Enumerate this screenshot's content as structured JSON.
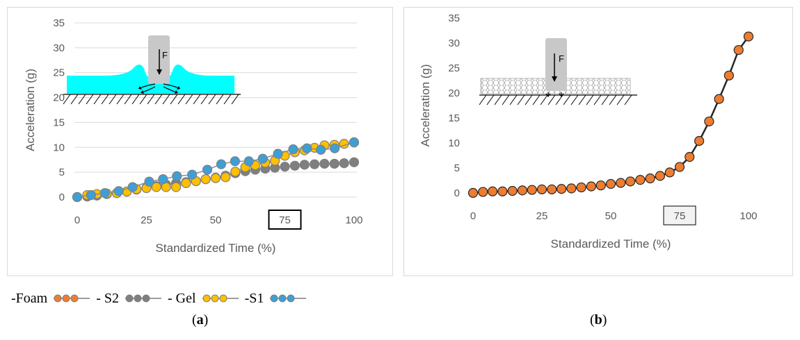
{
  "chart_data": [
    {
      "type": "line",
      "panel": "a",
      "xlabel": "Standardized Time (%)",
      "ylabel": "Acceleration (g)",
      "xlim": [
        0,
        100
      ],
      "ylim": [
        0,
        35
      ],
      "xticks": [
        "0",
        "25",
        "50",
        "75",
        "100"
      ],
      "yticks": [
        "0",
        "5",
        "10",
        "15",
        "20",
        "25",
        "30",
        "35"
      ],
      "highlighted_tick": "75",
      "grid": "horizontal",
      "inset_label": "F",
      "series": [
        {
          "name": "S2",
          "color": "#7f7f7f",
          "x": [
            0,
            3.6,
            7.1,
            10.7,
            14.3,
            17.9,
            21.4,
            25,
            28.6,
            32.1,
            35.7,
            39.3,
            42.9,
            46.4,
            50,
            53.6,
            57.1,
            60.7,
            64.3,
            67.9,
            71.4,
            75,
            78.6,
            82.1,
            85.7,
            89.3,
            92.9,
            96.4,
            100
          ],
          "y": [
            0,
            0.1,
            0.3,
            0.6,
            0.8,
            1.1,
            1.5,
            1.9,
            2.2,
            2.5,
            2.8,
            3.0,
            3.2,
            3.6,
            3.9,
            4.3,
            4.8,
            5.2,
            5.5,
            5.7,
            5.9,
            6.1,
            6.3,
            6.5,
            6.6,
            6.7,
            6.7,
            6.8,
            7.0
          ]
        },
        {
          "name": "Gel",
          "color": "#ffc000",
          "x": [
            0,
            3.6,
            7.1,
            10.7,
            14.3,
            17.9,
            21.4,
            25,
            28.6,
            32.1,
            35.7,
            39.3,
            42.9,
            46.4,
            50,
            53.6,
            57.1,
            60.7,
            64.3,
            67.9,
            71.4,
            75,
            78.6,
            82.1,
            85.7,
            89.3,
            92.9,
            96.4,
            100
          ],
          "y": [
            0,
            0.4,
            0.6,
            0.7,
            0.8,
            1.1,
            1.6,
            1.8,
            2.0,
            2.0,
            2.0,
            2.8,
            3.2,
            3.6,
            3.8,
            4.0,
            5.1,
            6.0,
            6.4,
            6.9,
            7.3,
            8.3,
            9.0,
            9.4,
            9.9,
            10.4,
            10.5,
            10.7,
            11.0
          ]
        },
        {
          "name": "S1",
          "color": "#3e9fd6",
          "x": [
            0,
            5,
            10,
            15,
            20,
            26,
            31,
            36,
            41.5,
            47,
            52,
            57,
            62,
            67,
            72.5,
            78,
            83,
            88,
            93,
            100
          ],
          "y": [
            0,
            0.4,
            0.8,
            1.2,
            2.0,
            3.1,
            3.6,
            4.2,
            4.5,
            5.5,
            6.6,
            7.2,
            7.2,
            7.7,
            8.7,
            9.6,
            9.8,
            9.5,
            9.8,
            11.0
          ]
        }
      ]
    },
    {
      "type": "line",
      "panel": "b",
      "xlabel": "Standardized Time (%)",
      "ylabel": "Acceleration (g)",
      "xlim": [
        0,
        100
      ],
      "ylim": [
        0,
        35
      ],
      "xticks": [
        "0",
        "25",
        "50",
        "75",
        "100"
      ],
      "yticks": [
        "0",
        "5",
        "10",
        "15",
        "20",
        "25",
        "30",
        "35"
      ],
      "highlighted_tick": "75",
      "grid": "none",
      "inset_label": "F",
      "series": [
        {
          "name": "Foam",
          "color": "#ed7d31",
          "x": [
            0,
            3.6,
            7.1,
            10.7,
            14.3,
            17.9,
            21.4,
            25,
            28.6,
            32.1,
            35.7,
            39.3,
            42.9,
            46.4,
            50,
            53.6,
            57.1,
            60.7,
            64.3,
            67.9,
            71.4,
            75,
            78.6,
            82.1,
            85.7,
            89.3,
            92.9,
            96.4,
            100
          ],
          "y": [
            0,
            0.2,
            0.3,
            0.3,
            0.4,
            0.5,
            0.6,
            0.7,
            0.7,
            0.8,
            0.9,
            1.1,
            1.3,
            1.5,
            1.8,
            2.0,
            2.3,
            2.6,
            2.9,
            3.4,
            4.1,
            5.2,
            7.2,
            10.4,
            14.3,
            18.8,
            23.5,
            28.6,
            31.3
          ]
        }
      ]
    }
  ],
  "legend": {
    "items": [
      {
        "text": "-Foam",
        "color": "#ed7d31"
      },
      {
        "text": "- S2",
        "color": "#7f7f7f"
      },
      {
        "text": "- Gel",
        "color": "#ffc000"
      },
      {
        "text": "-S1",
        "color": "#3e9fd6"
      }
    ]
  },
  "captions": {
    "a_open": "(",
    "a_letter": "a",
    "a_close": ")",
    "b_open": "(",
    "b_letter": "b",
    "b_close": ")"
  }
}
